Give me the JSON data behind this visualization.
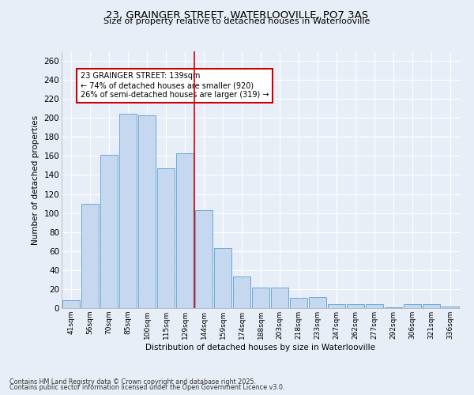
{
  "title": "23, GRAINGER STREET, WATERLOOVILLE, PO7 3AS",
  "subtitle": "Size of property relative to detached houses in Waterlooville",
  "xlabel": "Distribution of detached houses by size in Waterlooville",
  "ylabel": "Number of detached properties",
  "categories": [
    "41sqm",
    "56sqm",
    "70sqm",
    "85sqm",
    "100sqm",
    "115sqm",
    "129sqm",
    "144sqm",
    "159sqm",
    "174sqm",
    "188sqm",
    "203sqm",
    "218sqm",
    "233sqm",
    "247sqm",
    "262sqm",
    "277sqm",
    "292sqm",
    "306sqm",
    "321sqm",
    "336sqm"
  ],
  "values": [
    8,
    110,
    161,
    204,
    203,
    147,
    163,
    103,
    63,
    33,
    22,
    22,
    11,
    12,
    4,
    4,
    4,
    1,
    4,
    4,
    2
  ],
  "bar_color": "#c5d8f0",
  "bar_edge_color": "#6aaad4",
  "background_color": "#e8eef8",
  "grid_color": "#ffffff",
  "vline_color": "#cc0000",
  "annotation_line1": "23 GRAINGER STREET: 139sqm",
  "annotation_line2": "← 74% of detached houses are smaller (920)",
  "annotation_line3": "26% of semi-detached houses are larger (319) →",
  "annotation_box_color": "#ffffff",
  "annotation_box_edge": "#cc0000",
  "footer1": "Contains HM Land Registry data © Crown copyright and database right 2025.",
  "footer2": "Contains public sector information licensed under the Open Government Licence v3.0.",
  "ylim": [
    0,
    270
  ],
  "yticks": [
    0,
    20,
    40,
    60,
    80,
    100,
    120,
    140,
    160,
    180,
    200,
    220,
    240,
    260
  ]
}
